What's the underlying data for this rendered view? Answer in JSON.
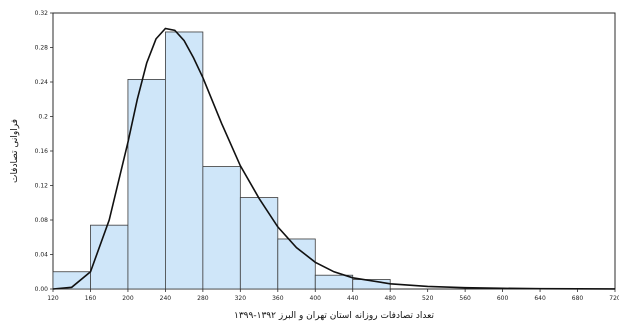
{
  "chart_data": {
    "type": "bar",
    "title": "",
    "xlabel": "تعداد تصادفات روزانه استان تهران و البرز ۱۳۹۲-۱۳۹۹",
    "ylabel": "فراوانی تصادفات",
    "x_ticks": [
      "120",
      "160",
      "200",
      "240",
      "280",
      "320",
      "360",
      "400",
      "440",
      "480",
      "520",
      "560",
      "600",
      "640",
      "680",
      "720"
    ],
    "y_ticks": [
      "0.00",
      "0.04",
      "0.08",
      "0.12",
      "0.16",
      "0.2",
      "0.24",
      "0.28",
      "0.32"
    ],
    "xlim": [
      120,
      720
    ],
    "ylim": [
      0,
      0.32
    ],
    "bins": [
      {
        "x0": 120,
        "x1": 160,
        "value": 0.02
      },
      {
        "x0": 160,
        "x1": 200,
        "value": 0.074
      },
      {
        "x0": 200,
        "x1": 240,
        "value": 0.243
      },
      {
        "x0": 240,
        "x1": 280,
        "value": 0.298
      },
      {
        "x0": 280,
        "x1": 320,
        "value": 0.142
      },
      {
        "x0": 320,
        "x1": 360,
        "value": 0.106
      },
      {
        "x0": 360,
        "x1": 400,
        "value": 0.058
      },
      {
        "x0": 400,
        "x1": 440,
        "value": 0.016
      },
      {
        "x0": 440,
        "x1": 480,
        "value": 0.011
      }
    ],
    "curve": {
      "x": [
        120,
        140,
        160,
        180,
        200,
        210,
        220,
        230,
        240,
        250,
        260,
        270,
        280,
        300,
        320,
        340,
        360,
        380,
        400,
        420,
        440,
        480,
        520,
        560,
        600,
        640,
        680,
        720
      ],
      "y": [
        0.0,
        0.002,
        0.02,
        0.08,
        0.17,
        0.22,
        0.262,
        0.29,
        0.302,
        0.3,
        0.288,
        0.268,
        0.245,
        0.192,
        0.143,
        0.105,
        0.072,
        0.048,
        0.031,
        0.02,
        0.013,
        0.006,
        0.003,
        0.0015,
        0.0008,
        0.0004,
        0.0002,
        0.0001
      ]
    },
    "bar_color": "#cfe6f9",
    "bar_edge_color": "#3b3b3b",
    "curve_color": "#111111",
    "grid": false,
    "legend": "none"
  }
}
